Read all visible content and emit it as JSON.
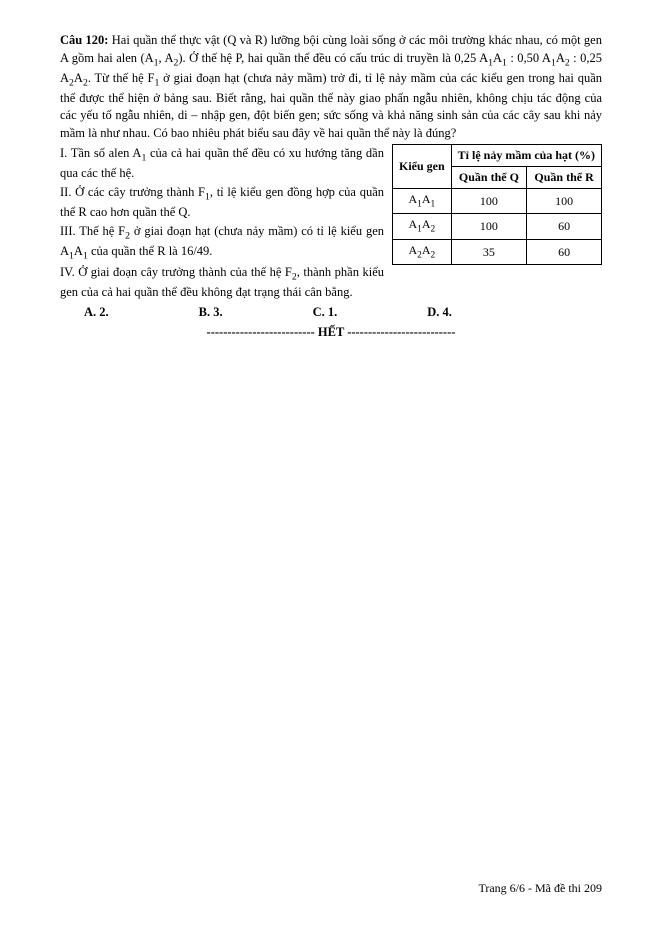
{
  "question": {
    "label": "Câu 120:",
    "intro_part1": " Hai quần thể thực vật (Q và R) lưỡng bội cùng loài sống ở các môi trường khác nhau, có một gen A gồm hai alen (A",
    "intro_part2": ", A",
    "intro_part3": "). Ở thế hệ P, hai quần thể đều có cấu trúc di truyền là 0,25 A",
    "intro_part4": "A",
    "intro_part5": " : 0,50 A",
    "intro_part6": "A",
    "intro_part7": " : 0,25 A",
    "intro_part8": "A",
    "intro_part9": ". Từ thế hệ F",
    "intro_part10": " ở giai đoạn hạt (chưa nảy mầm) trở đi, tỉ lệ nảy mầm của các kiểu gen trong hai quần thể được thể hiện ở bảng sau. Biết rằng, hai quần thể này giao phấn ngẫu nhiên, không chịu tác động của các yếu tố ngẫu nhiên, di – nhập gen, đột biến gen; sức sống và khả năng sinh sản của các cây sau khi nảy mầm là như nhau. Có bao nhiêu phát biểu sau đây về hai quần thể này là đúng?",
    "stmt_I_a": "I. Tần số alen A",
    "stmt_I_b": " của cả hai quần thể đều có xu hướng tăng dần qua các thế hệ.",
    "stmt_II_a": "II. Ở các cây trưởng thành F",
    "stmt_II_b": ", tỉ lệ kiểu gen đồng hợp của quần thể R cao hơn quần thể Q.",
    "stmt_III_a": "III. Thế hệ F",
    "stmt_III_b": " ở giai đoạn hạt (chưa nảy mầm) có tỉ lệ kiểu gen A",
    "stmt_III_c": "A",
    "stmt_III_d": " của quần thể R là 16/49.",
    "stmt_IV_a": "IV. Ở giai đoạn cây trưởng thành của thế hệ F",
    "stmt_IV_b": ", thành phần kiểu gen của cả hai quần thể đều không đạt trạng thái cân bằng.",
    "options": {
      "A": "A. 2.",
      "B": "B. 3.",
      "C": "C. 1.",
      "D": "D. 4."
    }
  },
  "table": {
    "header_kieu": "Kiểu gen",
    "header_tile": "Tỉ lệ nảy mầm của hạt (%)",
    "header_Q": "Quần thể Q",
    "header_R": "Quần thể R",
    "rows": [
      {
        "gen_a": "A",
        "gen_b": "A",
        "Q": "100",
        "R": "100"
      },
      {
        "gen_a": "A",
        "gen_b": "A",
        "Q": "100",
        "R": "60"
      },
      {
        "gen_a": "A",
        "gen_b": "A",
        "Q": "35",
        "R": "60"
      }
    ],
    "subs": {
      "r0a": "1",
      "r0b": "1",
      "r1a": "1",
      "r1b": "2",
      "r2a": "2",
      "r2b": "2"
    }
  },
  "end_line": "-------------------------- HẾT --------------------------",
  "footer": "Trang 6/6 - Mã đề thi 209"
}
